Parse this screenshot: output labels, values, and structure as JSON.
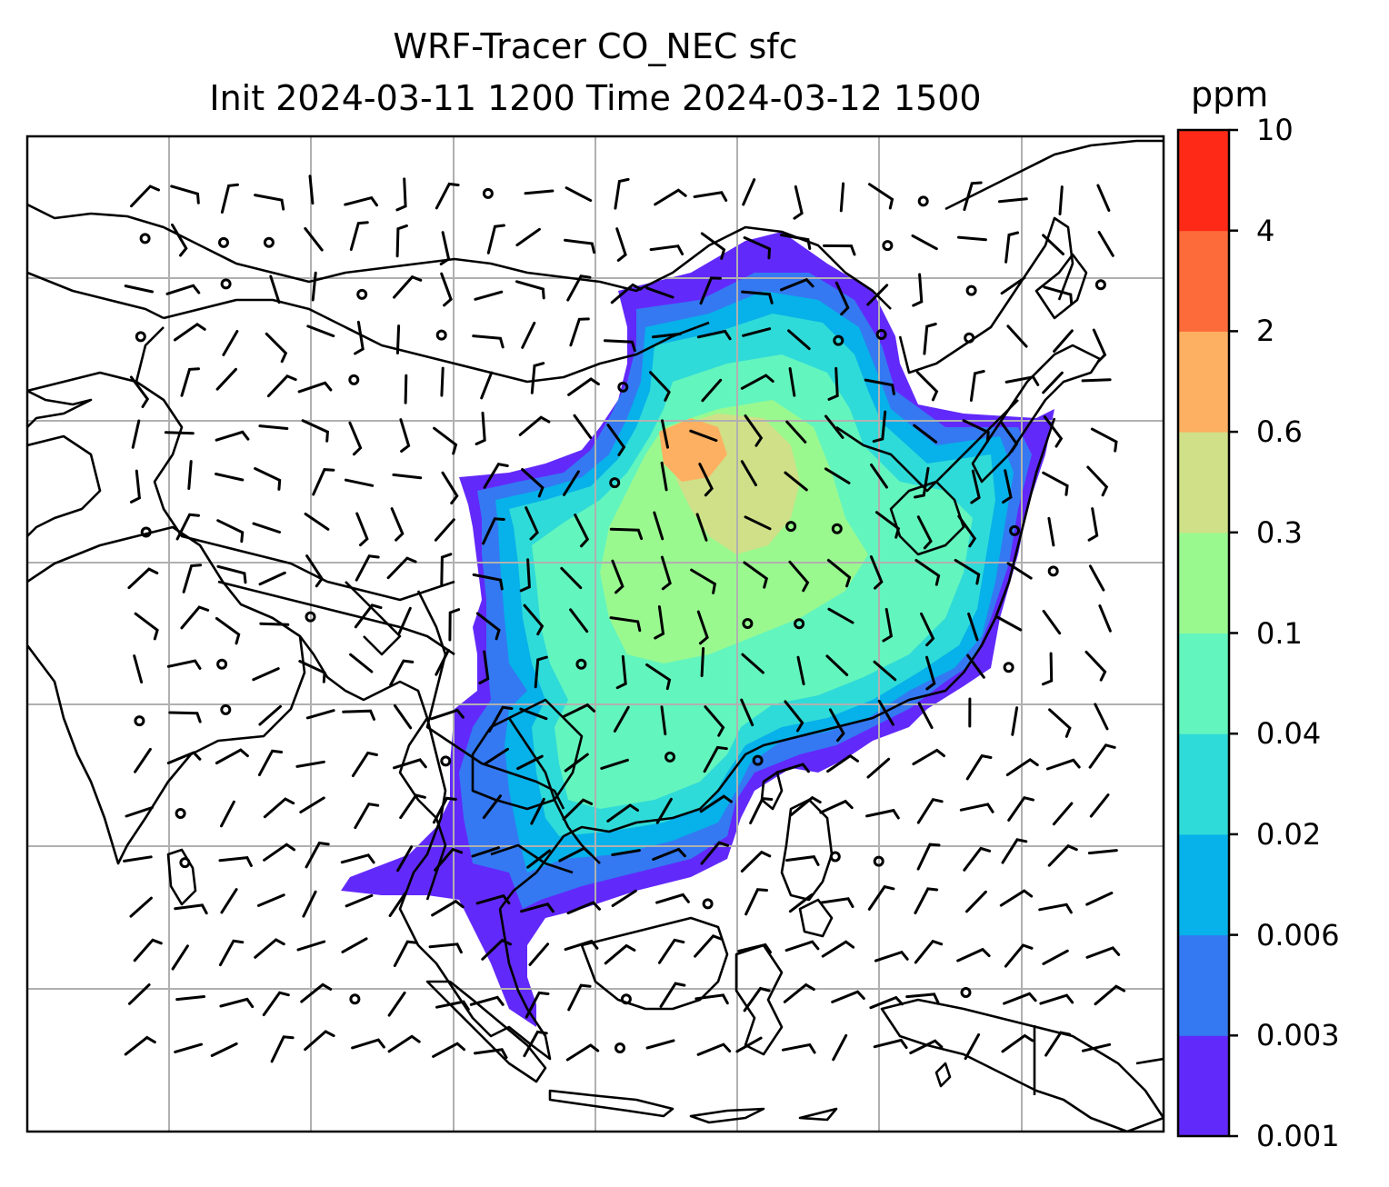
{
  "title": {
    "line1": "WRF-Tracer CO_NEC sfc",
    "line2": "Init 2024-03-11 1200 Time 2024-03-12 1500"
  },
  "colorbar": {
    "unit": "ppm",
    "levels": [
      "0.001",
      "0.003",
      "0.006",
      "0.02",
      "0.04",
      "0.1",
      "0.3",
      "0.6",
      "2",
      "4",
      "10"
    ],
    "colors": [
      "#6229fb",
      "#3479f2",
      "#07b1e9",
      "#2fdbd8",
      "#63f5be",
      "#99f98f",
      "#cfe088",
      "#fdb062",
      "#fe6b3a",
      "#fe2a17"
    ]
  },
  "map": {
    "gridlines": true,
    "grid_color": "#b0b0b0",
    "coastline_color": "#000000",
    "overlay": "wind barbs"
  }
}
